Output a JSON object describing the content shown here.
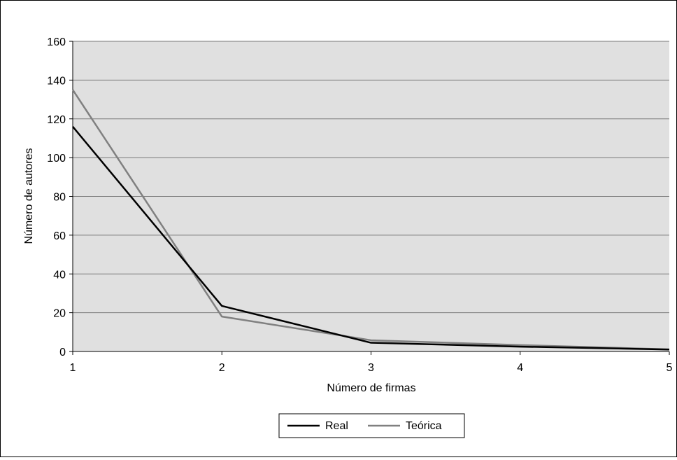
{
  "chart_data": {
    "type": "line",
    "title": "",
    "xlabel": "Número de firmas",
    "ylabel": "Número de autores",
    "x": [
      1,
      2,
      3,
      4,
      5
    ],
    "xlim": [
      1,
      5
    ],
    "ylim": [
      0,
      160
    ],
    "yticks": [
      0,
      20,
      40,
      60,
      80,
      100,
      120,
      140,
      160
    ],
    "xticks": [
      1,
      2,
      3,
      4,
      5
    ],
    "grid": "horizontal",
    "plot_background": "#e0e0e0",
    "legend_position": "bottom-center",
    "series": [
      {
        "name": "Real",
        "color": "#000000",
        "values": [
          116,
          23.5,
          4.5,
          2.5,
          1
        ]
      },
      {
        "name": "Teórica",
        "color": "#808080",
        "values": [
          135,
          18,
          5.8,
          3.3,
          1.1
        ]
      }
    ]
  }
}
